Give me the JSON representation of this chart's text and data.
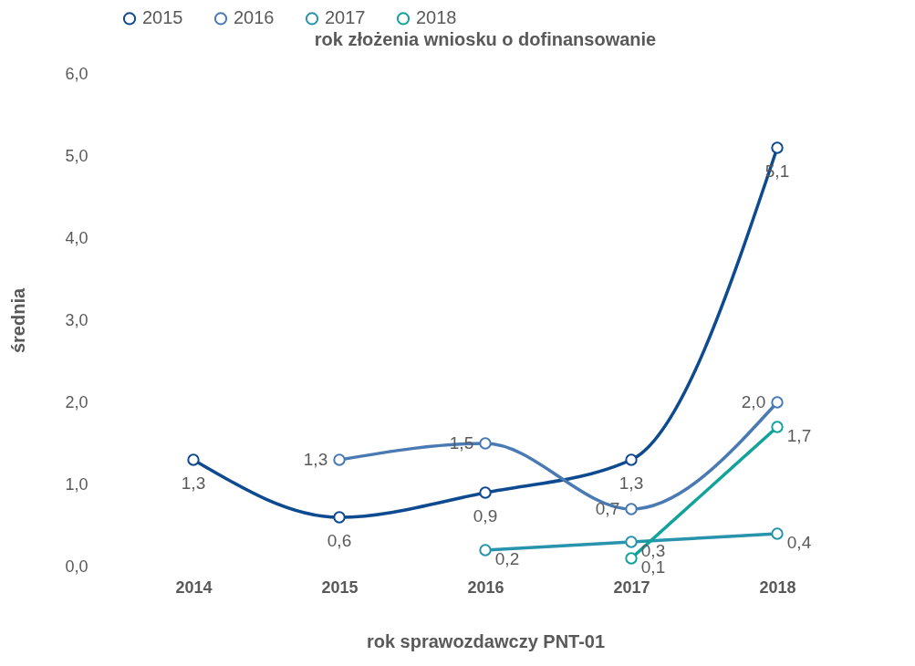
{
  "chart_data": {
    "type": "line",
    "title": "rok złożenia wniosku o dofinansowanie",
    "xlabel": "rok sprawozdawczy PNT-01",
    "ylabel": "średnia",
    "categories": [
      "2014",
      "2015",
      "2016",
      "2017",
      "2018"
    ],
    "series": [
      {
        "name": "2015",
        "color": "#0d4a8f",
        "values": [
          1.3,
          0.6,
          0.9,
          1.3,
          5.1
        ],
        "value_labels": [
          "1,3",
          "0,6",
          "0,9",
          "1,3",
          "5,1"
        ]
      },
      {
        "name": "2016",
        "color": "#4a7ab4",
        "values": [
          null,
          1.3,
          1.5,
          0.7,
          2.0
        ],
        "value_labels": [
          null,
          "1,3",
          "1,5",
          "0,7",
          "2,0"
        ]
      },
      {
        "name": "2017",
        "color": "#2793ad",
        "values": [
          null,
          null,
          0.2,
          0.3,
          0.4
        ],
        "value_labels": [
          null,
          null,
          "0,2",
          "0,3",
          "0,4"
        ]
      },
      {
        "name": "2018",
        "color": "#10a39a",
        "values": [
          null,
          null,
          null,
          0.1,
          1.7
        ],
        "value_labels": [
          null,
          null,
          null,
          "0,1",
          "1,7"
        ]
      }
    ],
    "ylim": [
      0,
      6
    ],
    "yticks": [
      {
        "value": 0,
        "label": "0,0"
      },
      {
        "value": 1,
        "label": "1,0"
      },
      {
        "value": 2,
        "label": "2,0"
      },
      {
        "value": 3,
        "label": "3,0"
      },
      {
        "value": 4,
        "label": "4,0"
      },
      {
        "value": 5,
        "label": "5,0"
      },
      {
        "value": 6,
        "label": "6,0"
      }
    ],
    "grid": false,
    "legend": "top",
    "marker": "circle",
    "line_style": "solid"
  }
}
